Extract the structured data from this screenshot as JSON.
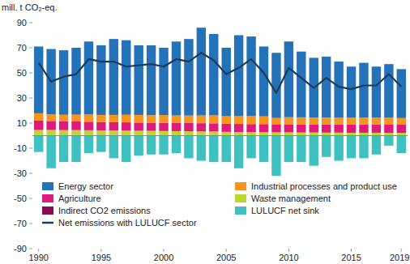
{
  "chart_data": {
    "type": "bar",
    "stacked": true,
    "grid": false,
    "legend": "bottom",
    "y_label": "mill. t CO₂-eq.",
    "categories": [
      "1990",
      null,
      null,
      null,
      null,
      "1995",
      null,
      null,
      null,
      null,
      "2000",
      null,
      null,
      null,
      null,
      "2005",
      null,
      null,
      null,
      null,
      "2010",
      null,
      null,
      null,
      null,
      "2015",
      null,
      null,
      null,
      "2019*"
    ],
    "ylim": [
      -90,
      90
    ],
    "yticks": [
      -90,
      -70,
      -50,
      -30,
      -10,
      10,
      30,
      50,
      70,
      90
    ],
    "series": [
      {
        "name": "Energy sector",
        "color": "#2472b8",
        "values": [
          53.2,
          52.1,
          51.4,
          53.3,
          58.2,
          55.5,
          60.5,
          59.4,
          55.5,
          55.7,
          53.6,
          58.9,
          61.0,
          69.9,
          64.8,
          54.5,
          64.2,
          63.3,
          55.6,
          51.9,
          60.3,
          52.4,
          47.6,
          48.6,
          44.5,
          40.7,
          43.5,
          40.5,
          42.7,
          39.0
        ]
      },
      {
        "name": "Industrial processes and product use",
        "color": "#f7941d",
        "values": [
          5.8,
          5.2,
          5.2,
          5.4,
          5.7,
          5.7,
          5.8,
          6.0,
          6.1,
          6.0,
          6.2,
          6.0,
          6.0,
          6.2,
          6.4,
          6.0,
          6.5,
          6.5,
          6.2,
          5.0,
          5.6,
          5.6,
          5.4,
          5.5,
          5.5,
          5.4,
          5.6,
          5.6,
          5.6,
          5.3
        ]
      },
      {
        "name": "Agriculture",
        "color": "#e0197d",
        "values": [
          7.5,
          7.2,
          7.0,
          6.9,
          6.8,
          6.6,
          6.6,
          6.6,
          6.5,
          6.5,
          6.5,
          6.5,
          6.5,
          6.5,
          6.5,
          6.5,
          6.4,
          6.4,
          6.5,
          6.5,
          6.5,
          6.5,
          6.5,
          6.5,
          6.6,
          6.6,
          6.6,
          6.6,
          6.5,
          6.5
        ]
      },
      {
        "name": "Waste management",
        "color": "#bcd531",
        "values": [
          4.0,
          4.0,
          3.9,
          3.9,
          3.8,
          3.7,
          3.6,
          3.5,
          3.4,
          3.3,
          3.2,
          3.1,
          3.0,
          2.9,
          2.8,
          2.7,
          2.6,
          2.5,
          2.4,
          2.3,
          2.3,
          2.2,
          2.2,
          2.1,
          2.1,
          2.0,
          2.0,
          2.0,
          1.9,
          1.9
        ]
      },
      {
        "name": "Indirect CO2 emissions",
        "color": "#8c0a52",
        "values": [
          0.5,
          0.5,
          0.5,
          0.5,
          0.5,
          0.5,
          0.5,
          0.5,
          0.5,
          0.5,
          0.5,
          0.5,
          0.5,
          0.5,
          0.5,
          0.3,
          0.3,
          0.3,
          0.3,
          0.3,
          0.3,
          0.3,
          0.3,
          0.3,
          0.3,
          0.3,
          0.3,
          0.3,
          0.3,
          0.3
        ]
      },
      {
        "name": "LULUCF net sink",
        "color": "#3fc1c1",
        "values": [
          -13,
          -26,
          -21,
          -21,
          -14,
          -13,
          -18,
          -21,
          -16,
          -15,
          -15,
          -14,
          -18,
          -20,
          -21,
          -21,
          -26,
          -18,
          -21,
          -32,
          -21,
          -21,
          -24,
          -17,
          -20,
          -18,
          -18,
          -15,
          -8,
          -14
        ]
      },
      {
        "name": "Net emissions with LULUCF sector",
        "color": "#1d3c5c",
        "type": "line",
        "values": [
          58,
          43,
          47,
          49,
          61,
          59,
          59,
          55,
          56,
          57,
          55,
          61,
          59,
          66,
          60,
          49,
          54,
          61,
          50,
          34,
          54,
          46,
          38,
          46,
          39,
          37,
          40,
          40,
          49,
          39
        ]
      }
    ]
  }
}
